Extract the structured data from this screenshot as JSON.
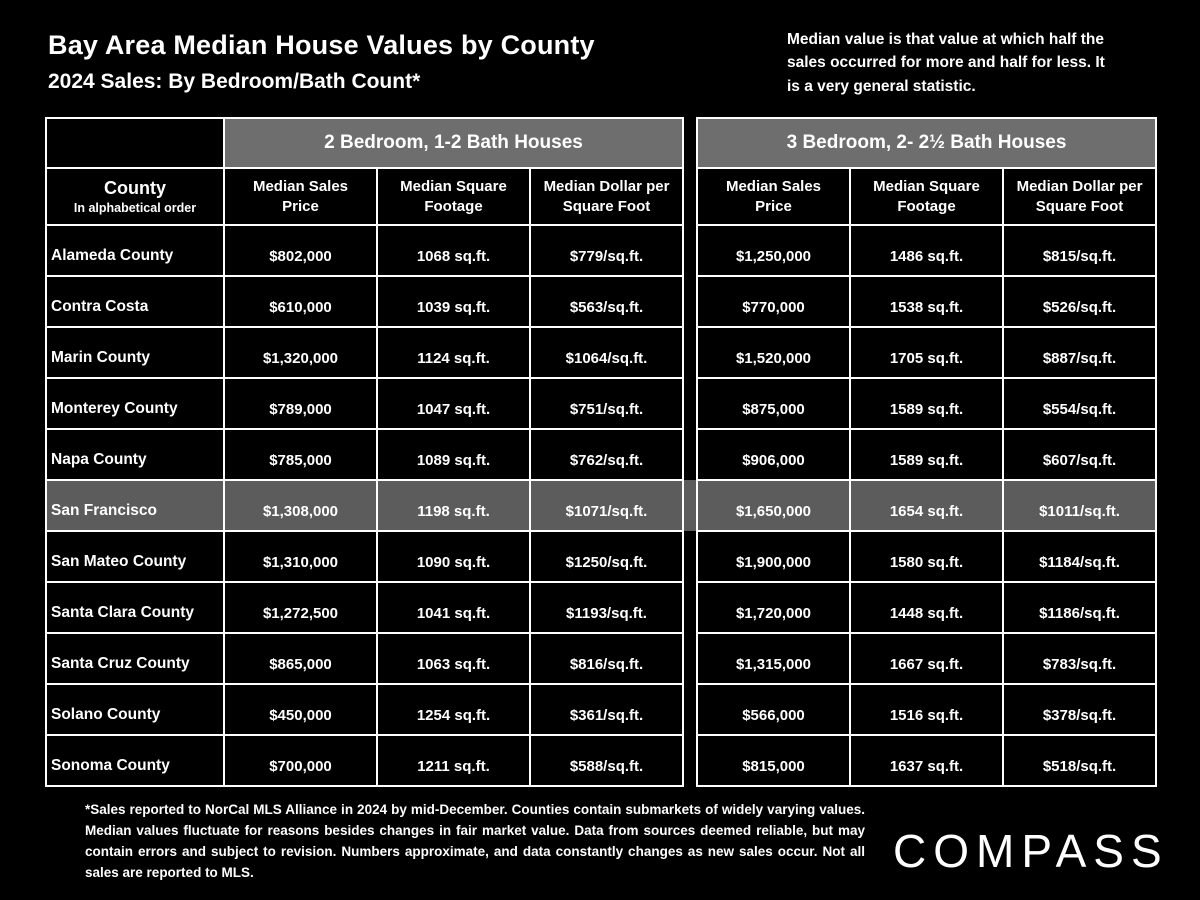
{
  "colors": {
    "background": "#000000",
    "text": "#ffffff",
    "border": "#ffffff",
    "group_header_bg": "#6e6e6e",
    "highlight_row_bg": "#5c5c5c"
  },
  "header": {
    "title": "Bay Area Median House Values by County",
    "subtitle": "2024 Sales:  By Bedroom/Bath Count*",
    "note": "Median value is that value at which half the sales occurred for more and half for less. It is a very general statistic."
  },
  "table_meta": {
    "county_header": "County",
    "county_subheader": "In alphabetical order"
  },
  "chart_data": {
    "type": "table",
    "title": "Bay Area Median House Values by County — 2024 Sales: By Bedroom/Bath Count",
    "group_headers": [
      "2 Bedroom, 1-2 Bath Houses",
      "3 Bedroom, 2- 2½  Bath Houses"
    ],
    "columns": [
      "County",
      "Median Sales Price",
      "Median Square Footage",
      "Median Dollar per Square Foot",
      "Median Sales Price",
      "Median Square Footage",
      "Median Dollar per Square Foot"
    ],
    "rows": [
      {
        "county": "Alameda County",
        "highlight": false,
        "cells": [
          "$802,000",
          "1068 sq.ft.",
          "$779/sq.ft.",
          "$1,250,000",
          "1486 sq.ft.",
          "$815/sq.ft."
        ]
      },
      {
        "county": "Contra Costa",
        "highlight": false,
        "cells": [
          "$610,000",
          "1039 sq.ft.",
          "$563/sq.ft.",
          "$770,000",
          "1538 sq.ft.",
          "$526/sq.ft."
        ]
      },
      {
        "county": "Marin County",
        "highlight": false,
        "cells": [
          "$1,320,000",
          "1124 sq.ft.",
          "$1064/sq.ft.",
          "$1,520,000",
          "1705 sq.ft.",
          "$887/sq.ft."
        ]
      },
      {
        "county": "Monterey County",
        "highlight": false,
        "cells": [
          "$789,000",
          "1047 sq.ft.",
          "$751/sq.ft.",
          "$875,000",
          "1589 sq.ft.",
          "$554/sq.ft."
        ]
      },
      {
        "county": "Napa County",
        "highlight": false,
        "cells": [
          "$785,000",
          "1089 sq.ft.",
          "$762/sq.ft.",
          "$906,000",
          "1589 sq.ft.",
          "$607/sq.ft."
        ]
      },
      {
        "county": "San Francisco",
        "highlight": true,
        "cells": [
          "$1,308,000",
          "1198 sq.ft.",
          "$1071/sq.ft.",
          "$1,650,000",
          "1654 sq.ft.",
          "$1011/sq.ft."
        ]
      },
      {
        "county": "San Mateo County",
        "highlight": false,
        "cells": [
          "$1,310,000",
          "1090 sq.ft.",
          "$1250/sq.ft.",
          "$1,900,000",
          "1580 sq.ft.",
          "$1184/sq.ft."
        ]
      },
      {
        "county": "Santa Clara County",
        "highlight": false,
        "cells": [
          "$1,272,500",
          "1041 sq.ft.",
          "$1193/sq.ft.",
          "$1,720,000",
          "1448 sq.ft.",
          "$1186/sq.ft."
        ]
      },
      {
        "county": "Santa Cruz County",
        "highlight": false,
        "cells": [
          "$865,000",
          "1063 sq.ft.",
          "$816/sq.ft.",
          "$1,315,000",
          "1667 sq.ft.",
          "$783/sq.ft."
        ]
      },
      {
        "county": "Solano County",
        "highlight": false,
        "cells": [
          "$450,000",
          "1254 sq.ft.",
          "$361/sq.ft.",
          "$566,000",
          "1516 sq.ft.",
          "$378/sq.ft."
        ]
      },
      {
        "county": "Sonoma County",
        "highlight": false,
        "cells": [
          "$700,000",
          "1211 sq.ft.",
          "$588/sq.ft.",
          "$815,000",
          "1637 sq.ft.",
          "$518/sq.ft."
        ]
      }
    ]
  },
  "footnote": "*Sales reported to NorCal MLS Alliance in 2024 by mid-December. Counties contain submarkets of widely varying values. Median values fluctuate for reasons besides changes in fair market value. Data from sources deemed reliable, but may contain errors and subject to revision.  Numbers approximate, and data constantly changes as new sales occur. Not all sales are reported to MLS.",
  "logo_text": "COMPASS"
}
